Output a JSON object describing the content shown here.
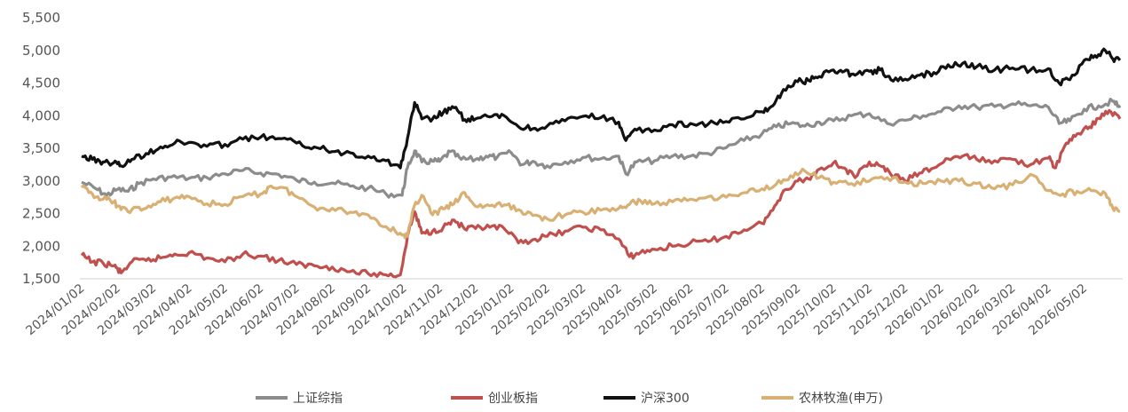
{
  "chart_data": {
    "type": "line",
    "title": "",
    "xlabel": "",
    "ylabel": "",
    "ylim": [
      1500,
      5500
    ],
    "yticks": [
      1500,
      2000,
      2500,
      3000,
      3500,
      4000,
      4500,
      5000,
      5500
    ],
    "ytick_labels": [
      "1,500",
      "2,000",
      "2,500",
      "3,000",
      "3,500",
      "4,000",
      "4,500",
      "5,000",
      "5,500"
    ],
    "xlim_index": [
      0,
      29
    ],
    "x_tick_labels": [
      "2024/01/02",
      "2024/02/02",
      "2024/03/02",
      "2024/04/02",
      "2024/05/02",
      "2024/06/02",
      "2024/07/02",
      "2024/08/02",
      "2024/09/02",
      "2024/10/02",
      "2024/11/02",
      "2024/12/02",
      "2025/01/02",
      "2025/02/02",
      "2025/03/02",
      "2025/04/02",
      "2025/05/02",
      "2025/06/02",
      "2025/07/02",
      "2025/08/02",
      "2025/09/02",
      "2025/10/02",
      "2025/11/02",
      "2025/12/02",
      "2026/01/02",
      "2026/02/02",
      "2026/03/02",
      "2026/04/02",
      "2026/05/02"
    ],
    "grid": false,
    "legend_position": "bottom",
    "series": [
      {
        "name": "上证综指",
        "color": "#8c8c8c",
        "x": [
          0,
          0.4,
          0.7,
          1.0,
          1.3,
          1.6,
          2.0,
          2.5,
          3.0,
          3.5,
          4.0,
          4.5,
          5.0,
          5.5,
          6.0,
          6.5,
          7.0,
          7.5,
          8.0,
          8.5,
          8.95,
          9.1,
          9.3,
          9.5,
          9.8,
          10.0,
          10.3,
          10.6,
          11.0,
          11.3,
          11.6,
          12.0,
          12.3,
          12.6,
          13.0,
          13.5,
          14.0,
          14.5,
          15.0,
          15.2,
          15.5,
          16.0,
          16.5,
          17.0,
          17.5,
          18.0,
          18.5,
          19.0,
          19.4,
          19.8,
          20.2,
          20.6,
          21.0,
          21.5,
          22.0,
          22.5,
          23.0,
          23.5,
          24.0,
          24.5,
          25.0,
          25.5,
          26.0,
          26.5,
          27.0,
          27.3,
          27.6,
          28.0,
          28.4,
          28.8,
          29.0
        ],
        "y": [
          2980,
          2880,
          2780,
          2870,
          2840,
          2960,
          3030,
          3060,
          3040,
          3050,
          3110,
          3160,
          3120,
          3100,
          3010,
          2980,
          2970,
          2920,
          2890,
          2800,
          2780,
          3200,
          3460,
          3290,
          3300,
          3300,
          3450,
          3330,
          3330,
          3380,
          3360,
          3430,
          3250,
          3300,
          3230,
          3290,
          3360,
          3340,
          3380,
          3110,
          3290,
          3310,
          3380,
          3380,
          3420,
          3510,
          3620,
          3720,
          3830,
          3880,
          3840,
          3900,
          3920,
          4000,
          4030,
          3880,
          3930,
          4000,
          4060,
          4150,
          4130,
          4140,
          4180,
          4150,
          4130,
          3880,
          3920,
          4100,
          4150,
          4220,
          4120
        ]
      },
      {
        "name": "创业板指",
        "color": "#c0504d",
        "x": [
          0,
          0.3,
          0.6,
          0.9,
          1.1,
          1.4,
          1.8,
          2.2,
          2.6,
          3.0,
          3.5,
          4.0,
          4.5,
          5.0,
          5.5,
          6.0,
          6.5,
          7.0,
          7.5,
          8.0,
          8.5,
          8.9,
          9.1,
          9.3,
          9.5,
          9.8,
          10.1,
          10.4,
          10.7,
          11.0,
          11.4,
          11.8,
          12.2,
          12.6,
          13.0,
          13.5,
          14.0,
          14.5,
          15.0,
          15.3,
          15.6,
          16.0,
          16.5,
          17.0,
          17.5,
          18.0,
          18.5,
          19.0,
          19.3,
          19.6,
          20.0,
          20.3,
          20.6,
          21.0,
          21.3,
          21.6,
          22.0,
          22.3,
          22.6,
          23.0,
          23.4,
          23.8,
          24.2,
          24.6,
          25.0,
          25.5,
          26.0,
          26.5,
          27.0,
          27.2,
          27.5,
          27.8,
          28.1,
          28.4,
          28.7,
          29.0
        ],
        "y": [
          1860,
          1760,
          1740,
          1700,
          1590,
          1760,
          1780,
          1820,
          1880,
          1900,
          1820,
          1760,
          1880,
          1850,
          1780,
          1720,
          1700,
          1680,
          1610,
          1580,
          1560,
          1560,
          2150,
          2530,
          2200,
          2230,
          2290,
          2400,
          2260,
          2270,
          2290,
          2270,
          2050,
          2100,
          2150,
          2230,
          2290,
          2250,
          2110,
          1840,
          1900,
          1950,
          2000,
          2050,
          2070,
          2150,
          2250,
          2350,
          2550,
          2850,
          3000,
          3030,
          3180,
          3280,
          3200,
          3050,
          3290,
          3230,
          3100,
          3000,
          3120,
          3200,
          3340,
          3380,
          3330,
          3310,
          3330,
          3250,
          3350,
          3200,
          3580,
          3720,
          3800,
          3960,
          4080,
          3950
        ]
      },
      {
        "name": "沪深300",
        "color": "#111111",
        "x": [
          0,
          0.3,
          0.6,
          0.9,
          1.1,
          1.4,
          1.8,
          2.2,
          2.6,
          3.0,
          3.5,
          4.0,
          4.5,
          5.0,
          5.5,
          6.0,
          6.5,
          7.0,
          7.5,
          8.0,
          8.5,
          8.9,
          9.1,
          9.3,
          9.5,
          9.8,
          10.1,
          10.4,
          10.7,
          11.0,
          11.4,
          11.8,
          12.2,
          12.6,
          13.0,
          13.5,
          14.0,
          14.5,
          15.0,
          15.2,
          15.5,
          16.0,
          16.5,
          17.0,
          17.5,
          18.0,
          18.5,
          19.0,
          19.3,
          19.6,
          20.0,
          20.3,
          20.6,
          21.0,
          21.3,
          21.6,
          22.0,
          22.3,
          22.6,
          23.0,
          23.4,
          23.8,
          24.2,
          24.6,
          25.0,
          25.5,
          26.0,
          26.5,
          27.0,
          27.3,
          27.6,
          28.0,
          28.3,
          28.6,
          28.8,
          29.0
        ],
        "y": [
          3380,
          3330,
          3290,
          3280,
          3230,
          3330,
          3420,
          3520,
          3580,
          3590,
          3530,
          3560,
          3640,
          3670,
          3650,
          3580,
          3520,
          3450,
          3430,
          3380,
          3310,
          3200,
          3650,
          4200,
          3950,
          3950,
          4050,
          4120,
          3940,
          3950,
          3980,
          4000,
          3830,
          3800,
          3840,
          3920,
          3990,
          3970,
          3900,
          3620,
          3780,
          3780,
          3860,
          3880,
          3870,
          3910,
          3950,
          4060,
          4150,
          4400,
          4520,
          4540,
          4600,
          4700,
          4680,
          4620,
          4680,
          4700,
          4550,
          4560,
          4620,
          4660,
          4780,
          4800,
          4750,
          4700,
          4730,
          4700,
          4720,
          4500,
          4550,
          4850,
          4920,
          4990,
          4870,
          4850
        ]
      },
      {
        "name": "农林牧渔(申万)",
        "color": "#d9b074",
        "x": [
          0,
          0.3,
          0.6,
          0.9,
          1.1,
          1.4,
          1.8,
          2.2,
          2.6,
          3.0,
          3.5,
          4.0,
          4.5,
          5.0,
          5.3,
          5.6,
          6.0,
          6.5,
          7.0,
          7.5,
          8.0,
          8.5,
          8.9,
          9.1,
          9.3,
          9.5,
          9.8,
          10.1,
          10.4,
          10.7,
          11.0,
          11.4,
          11.8,
          12.2,
          12.6,
          13.0,
          13.5,
          14.0,
          14.5,
          15.0,
          15.3,
          15.6,
          16.0,
          16.5,
          17.0,
          17.5,
          18.0,
          18.5,
          19.0,
          19.4,
          19.8,
          20.2,
          20.6,
          21.0,
          21.5,
          22.0,
          22.5,
          23.0,
          23.5,
          24.0,
          24.5,
          25.0,
          25.5,
          26.0,
          26.5,
          27.0,
          27.4,
          27.8,
          28.2,
          28.6,
          28.8,
          29.0
        ],
        "y": [
          2900,
          2800,
          2720,
          2680,
          2560,
          2560,
          2580,
          2680,
          2740,
          2760,
          2650,
          2640,
          2760,
          2800,
          2920,
          2900,
          2760,
          2600,
          2580,
          2520,
          2480,
          2300,
          2200,
          2150,
          2630,
          2780,
          2480,
          2570,
          2650,
          2820,
          2610,
          2620,
          2630,
          2560,
          2470,
          2420,
          2480,
          2520,
          2550,
          2580,
          2640,
          2700,
          2650,
          2680,
          2720,
          2760,
          2750,
          2820,
          2880,
          2950,
          3080,
          3150,
          3050,
          2980,
          2960,
          3000,
          3050,
          2980,
          2960,
          3000,
          3000,
          2960,
          2880,
          2940,
          3100,
          2850,
          2800,
          2840,
          2850,
          2800,
          2580,
          2530
        ]
      }
    ]
  }
}
